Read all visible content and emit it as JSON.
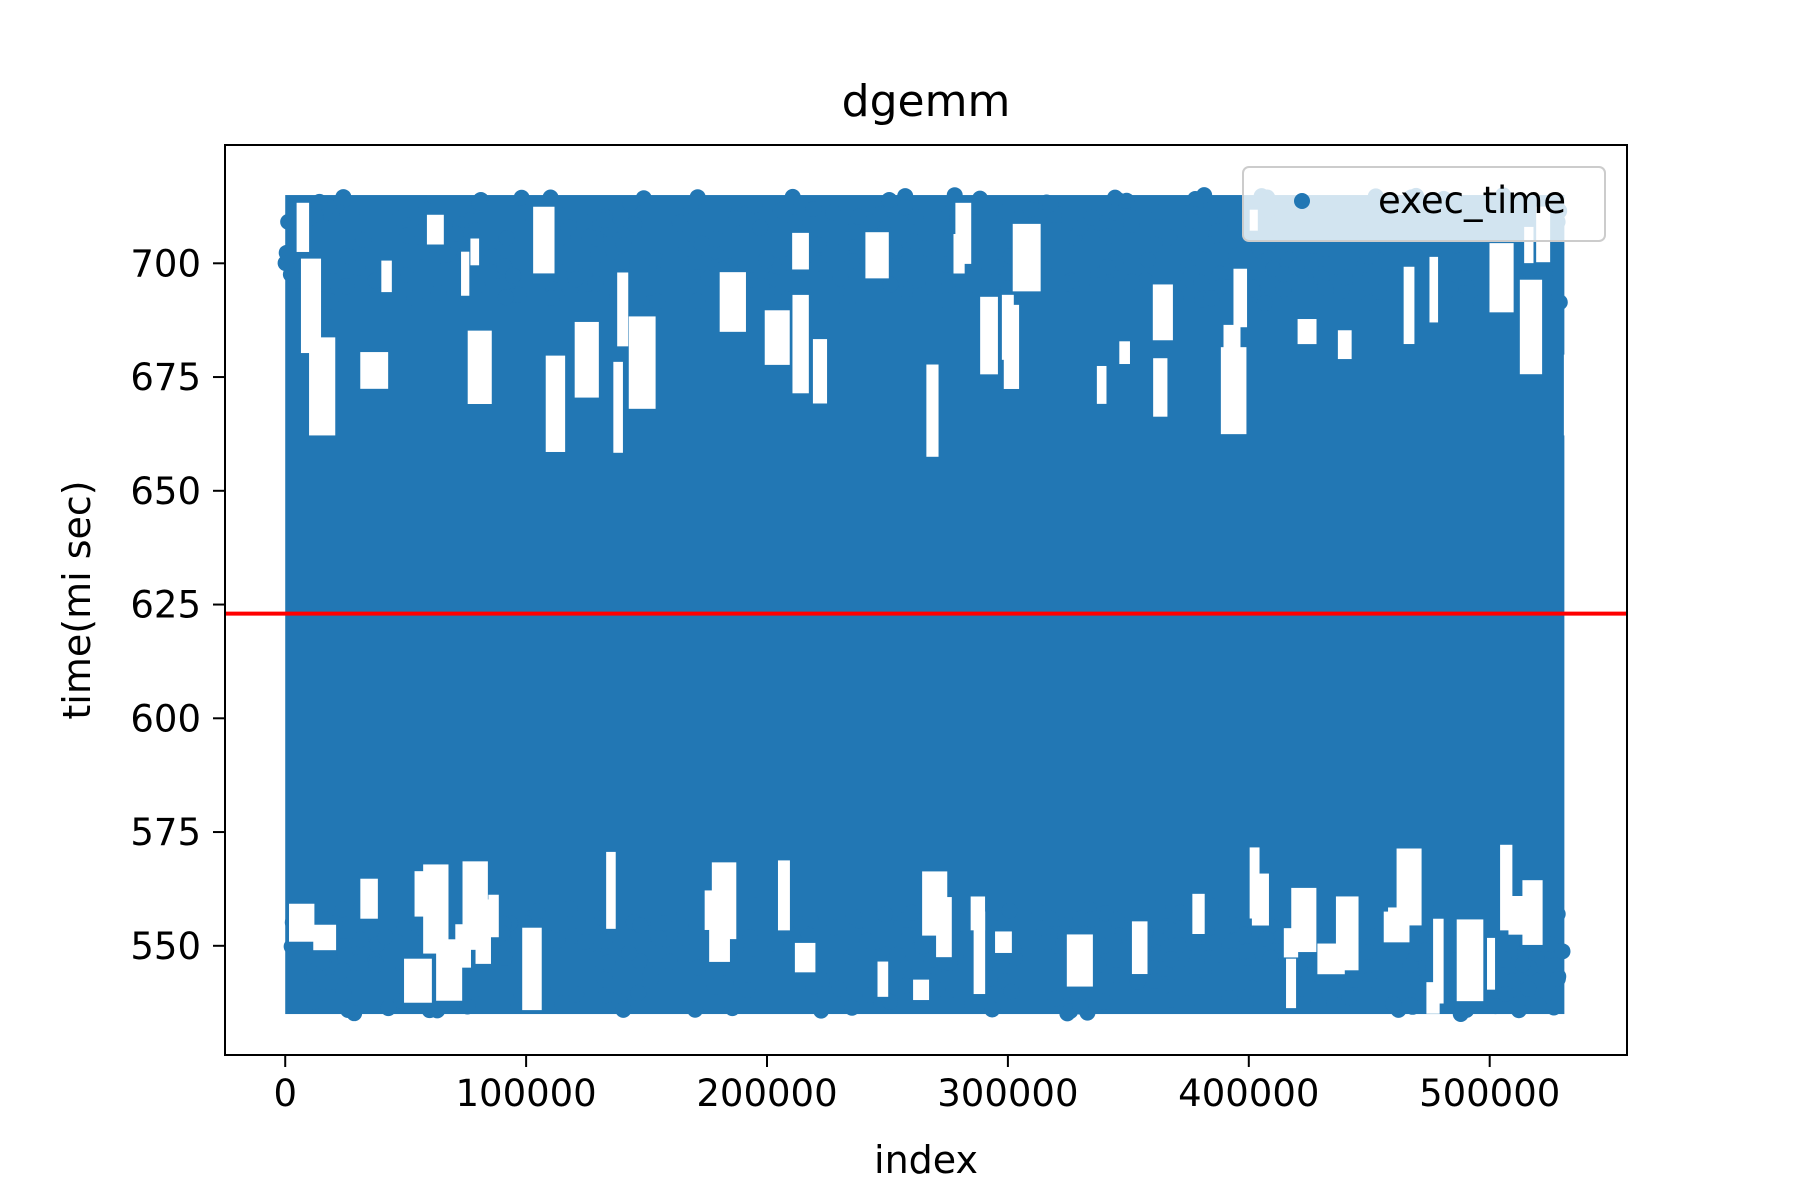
{
  "chart_data": {
    "type": "scatter",
    "title": "dgemm",
    "xlabel": "index",
    "ylabel": "time(mi sec)",
    "xlim": [
      -25000,
      557000
    ],
    "ylim": [
      526,
      726
    ],
    "x_ticks": [
      0,
      100000,
      200000,
      300000,
      400000,
      500000
    ],
    "y_ticks": [
      550,
      575,
      600,
      625,
      650,
      675,
      700
    ],
    "grid": false,
    "legend": {
      "position": "top-right",
      "entries": [
        "exec_time"
      ]
    },
    "series": [
      {
        "name": "exec_time",
        "marker": "circle",
        "color": "#2277b4",
        "x_range": [
          0,
          531000
        ],
        "dense_band": [
          535,
          715
        ],
        "description_values": {
          "min": 535,
          "max": 715
        }
      }
    ],
    "reference_line": {
      "orientation": "horizontal",
      "y": 623,
      "color": "#ff0000"
    },
    "colors": {
      "series": "#2277b4",
      "reference": "#ff0000",
      "axes": "#000000",
      "background": "#ffffff"
    }
  }
}
